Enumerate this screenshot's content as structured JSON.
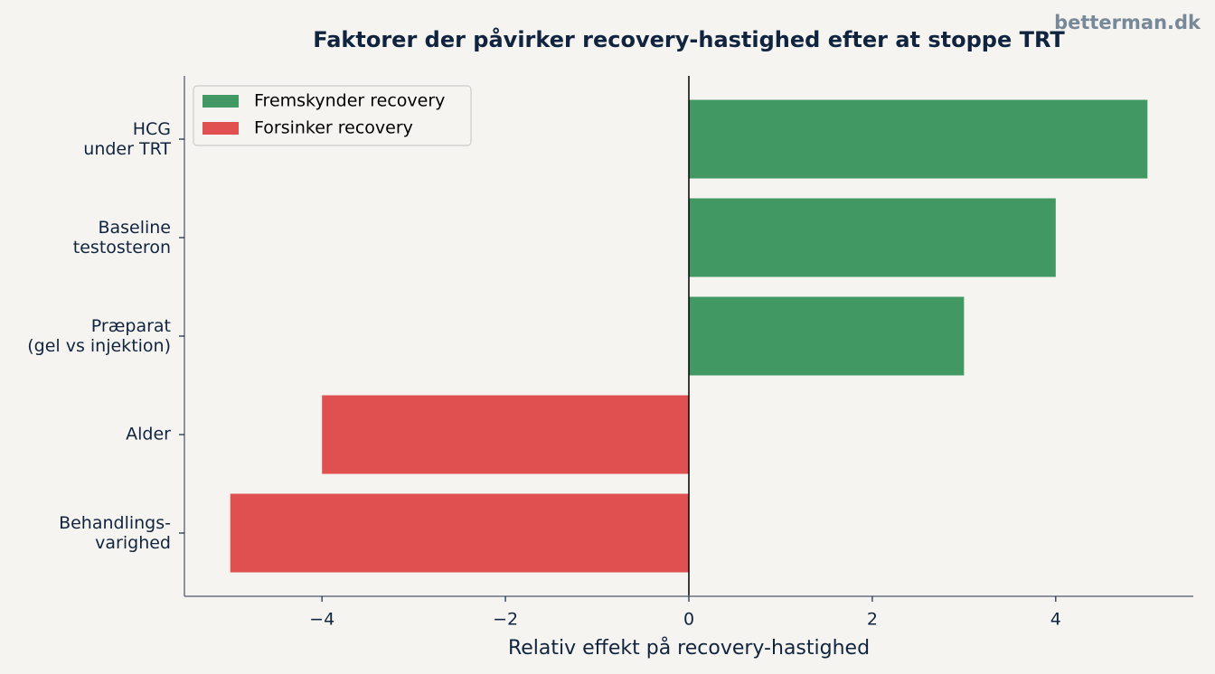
{
  "chart_data": {
    "type": "barh",
    "title": "Faktorer der påvirker recovery-hastighed efter at stoppe TRT",
    "watermark": "betterman.dk",
    "xlabel": "Relativ effekt på recovery-hastighed",
    "categories": [
      "HCG\nunder TRT",
      "Baseline\ntestosteron",
      "Præparat\n(gel vs injektion)",
      "Alder",
      "Behandlings-\nvarighed"
    ],
    "series": [
      {
        "name": "Fremskynder recovery",
        "color": "#429862",
        "values": [
          5,
          4,
          3,
          null,
          null
        ]
      },
      {
        "name": "Forsinker recovery",
        "color": "#e05050",
        "values": [
          null,
          null,
          null,
          -4,
          -5
        ]
      }
    ],
    "xlim": [
      -5.5,
      5.5
    ],
    "xticks": [
      {
        "value": -4,
        "label": "−4"
      },
      {
        "value": -2,
        "label": "−2"
      },
      0,
      2,
      4
    ],
    "legend": "upper left"
  }
}
